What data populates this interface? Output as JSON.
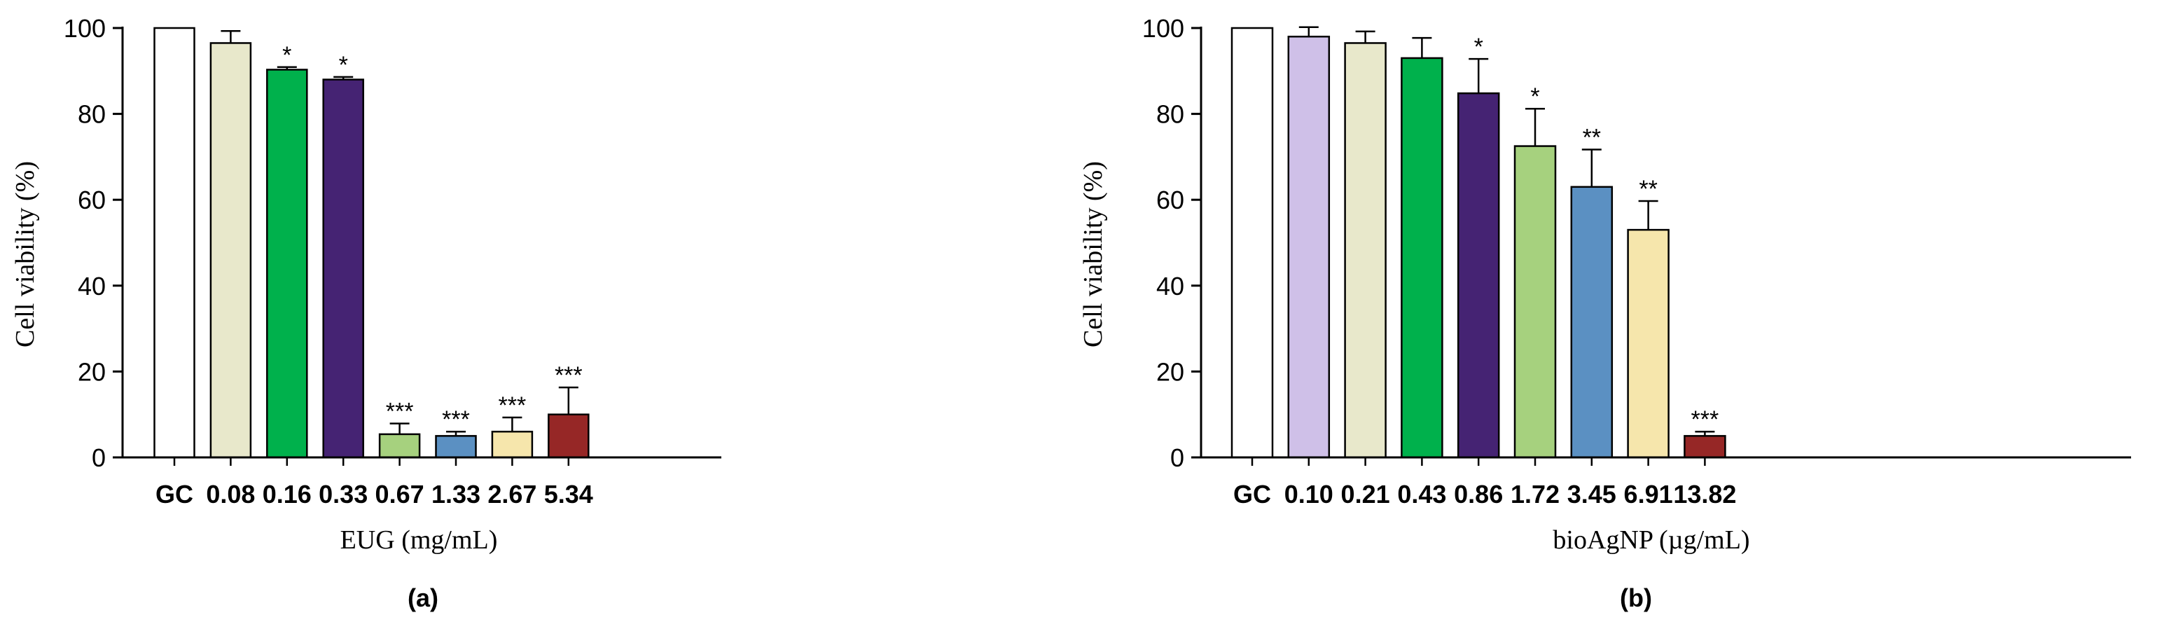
{
  "chart_data": [
    {
      "type": "bar",
      "panel_label": "(a)",
      "title": "",
      "xlabel": "EUG (mg/mL)",
      "ylabel": "Cell viability (%)",
      "ylim": [
        0,
        100
      ],
      "yticks": [
        "0",
        "20",
        "40",
        "60",
        "80",
        "100"
      ],
      "categories": [
        "GC",
        "0.08",
        "0.16",
        "0.33",
        "0.67",
        "1.33",
        "2.67",
        "5.34"
      ],
      "values": [
        100,
        96.5,
        90.3,
        88.0,
        5.4,
        5.0,
        6.0,
        10.0
      ],
      "errors": [
        0,
        2.8,
        0.6,
        0.6,
        2.5,
        1.0,
        3.3,
        6.3
      ],
      "significance": [
        "",
        "",
        "*",
        "*",
        "***",
        "***",
        "***",
        "***"
      ],
      "colors": [
        "#ffffff",
        "#e8e8cb",
        "#00b14c",
        "#452373",
        "#a6d17e",
        "#5b90c2",
        "#f6e6ac",
        "#962726"
      ],
      "grid": false
    },
    {
      "type": "bar",
      "panel_label": "(b)",
      "title": "",
      "xlabel": "bioAgNP (µg/mL)",
      "ylabel": "Cell viability (%)",
      "ylim": [
        0,
        100
      ],
      "yticks": [
        "0",
        "20",
        "40",
        "60",
        "80",
        "100"
      ],
      "categories": [
        "GC",
        "0.10",
        "0.21",
        "0.43",
        "0.86",
        "1.72",
        "3.45",
        "6.91",
        "13.82"
      ],
      "values": [
        100,
        98.0,
        96.5,
        93.0,
        84.8,
        72.5,
        63.0,
        53.0,
        5.0
      ],
      "errors": [
        0,
        2.2,
        2.7,
        4.7,
        8.0,
        8.7,
        8.7,
        6.7,
        1.0
      ],
      "significance": [
        "",
        "",
        "",
        "",
        "*",
        "*",
        "**",
        "**",
        "***"
      ],
      "colors": [
        "#ffffff",
        "#cfc0e8",
        "#e8e8cb",
        "#00b14c",
        "#452373",
        "#a6d17e",
        "#5b90c2",
        "#f6e6ac",
        "#962726"
      ],
      "grid": false
    }
  ]
}
